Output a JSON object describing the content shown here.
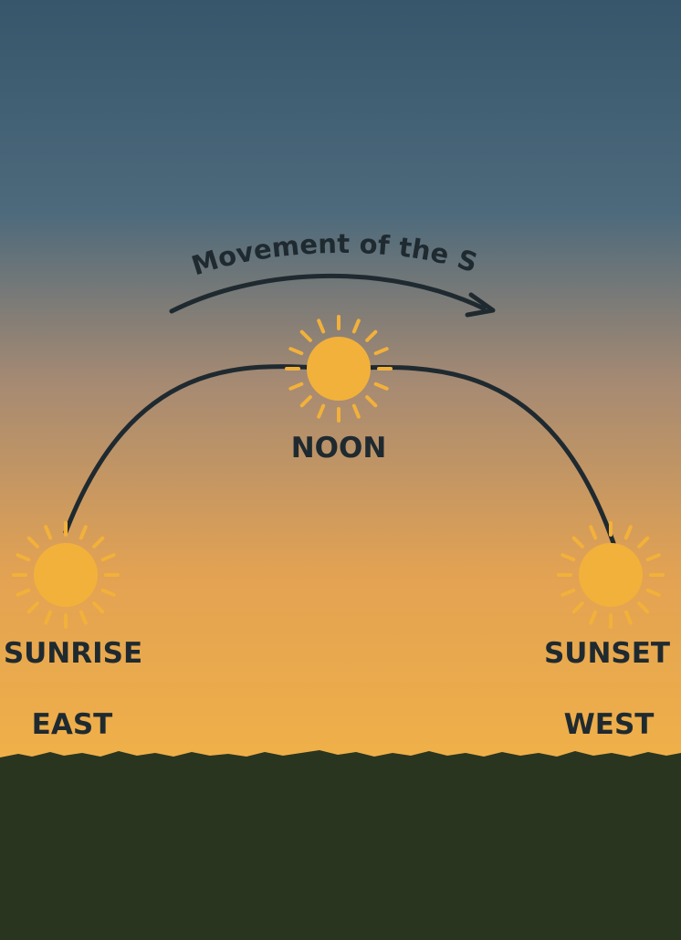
{
  "title": "Movement of the Sun",
  "colors": {
    "sky_top": "#37566b",
    "sky_mid": "#a58a73",
    "sky_low": "#e2a253",
    "sky_horizon": "#f0b048",
    "ground": "#2a3520",
    "sun": "#f2b13a",
    "rays": "#f2b13a",
    "path": "#1f2a30",
    "text": "#1f2a30"
  },
  "suns": [
    {
      "id": "sunrise",
      "label": "SUNRISE",
      "direction": "EAST"
    },
    {
      "id": "noon",
      "label": "NOON"
    },
    {
      "id": "sunset",
      "label": "SUNSET",
      "direction": "WEST"
    }
  ]
}
